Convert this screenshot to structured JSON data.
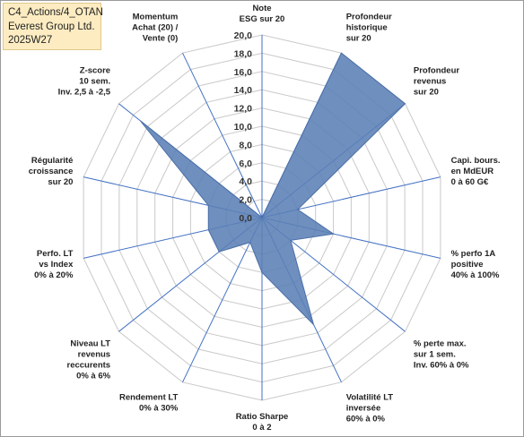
{
  "header": {
    "lines": [
      "C4_Actions/4_OTAN",
      "Everest Group Ltd.",
      "2025W27"
    ]
  },
  "colors": {
    "series_fill": "#5b7fb5",
    "series_stroke": "#4a6fa8",
    "grid": "#c9c9c9",
    "spoke": "#4472c4"
  },
  "chart_data": {
    "type": "radar",
    "rmin": 0,
    "rmax": 20,
    "tick_step": 2,
    "grid": true,
    "ticks": [
      "0,0",
      "2,0",
      "4,0",
      "6,0",
      "8,0",
      "10,0",
      "12,0",
      "14,0",
      "16,0",
      "18,0",
      "20,0"
    ],
    "axes": [
      [
        "Note",
        "ESG sur 20"
      ],
      [
        "Profondeur",
        "historique",
        "sur 20"
      ],
      [
        "Profondeur",
        "revenus",
        "sur 20"
      ],
      [
        "Capi. bours.",
        "en MdEUR",
        "0 à 60 G€"
      ],
      [
        "% perfo 1A",
        "positive",
        "40% à 100%"
      ],
      [
        "% perte max.",
        "sur 1 sem.",
        "Inv. 60% à 0%"
      ],
      [
        "Volatilité LT",
        "inversée",
        "60% à 0%"
      ],
      [
        "Ratio Sharpe",
        "0 à 2"
      ],
      [
        "Rendement LT",
        "0% à 30%"
      ],
      [
        "Niveau LT",
        "revenus",
        "reccurents",
        "0% à 6%"
      ],
      [
        "Perfo. LT",
        "vs Index",
        "0% à 20%"
      ],
      [
        "Régularité",
        "croissance",
        "sur 20"
      ],
      [
        "Z-score",
        "10 sem.",
        "Inv. 2,5 à -2,5"
      ],
      [
        "Momentum",
        "Achat (20) /",
        "Vente (0)"
      ]
    ],
    "series": [
      {
        "values": [
          0,
          20,
          20,
          4,
          8,
          4,
          13,
          6,
          3,
          6,
          6,
          6,
          17,
          0
        ]
      }
    ]
  }
}
